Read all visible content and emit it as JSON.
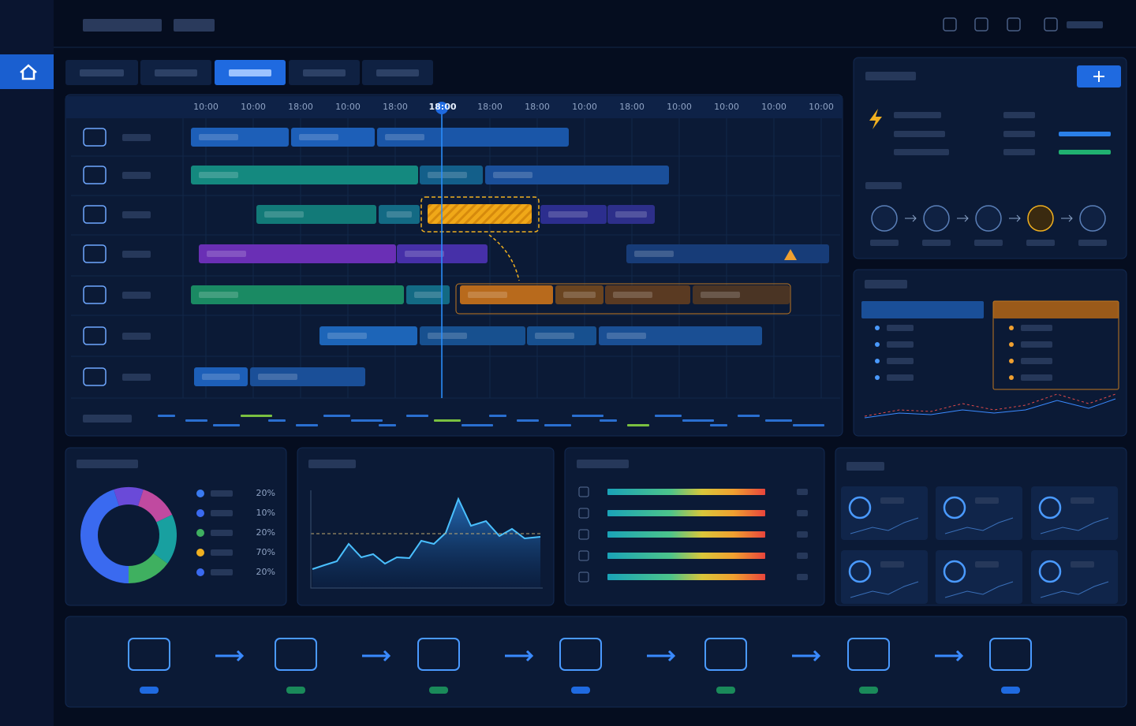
{
  "timeline": {
    "ticks": [
      "10:00",
      "10:00",
      "18:00",
      "10:00",
      "18:00",
      "18:00",
      "18:00",
      "18:00",
      "10:00",
      "18:00",
      "10:00",
      "10:00",
      "10:00",
      "10:00"
    ]
  },
  "donut_legend": {
    "items": [
      "20%",
      "10%",
      "20%",
      "70%",
      "20%"
    ]
  }
}
